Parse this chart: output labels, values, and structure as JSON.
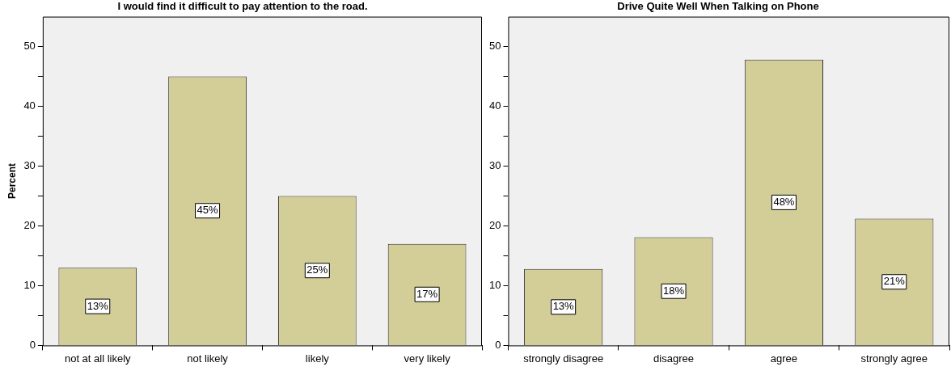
{
  "chart_data": [
    {
      "type": "bar",
      "title": "I would find it difficult to pay attention to the road.",
      "ylabel": "Percent",
      "categories": [
        "not at all likely",
        "not likely",
        "likely",
        "very likely"
      ],
      "values": [
        13,
        45,
        25,
        17
      ],
      "value_labels": [
        "13%",
        "45%",
        "25%",
        "17%"
      ],
      "color": "#d3ce97",
      "ylim": [
        0,
        55
      ],
      "yticks": [
        0,
        {
          "value": 5,
          "label": null
        },
        10,
        {
          "value": 15,
          "label": null
        },
        20,
        {
          "value": 25,
          "label": null
        },
        30,
        {
          "value": 35,
          "label": null
        },
        40,
        {
          "value": 45,
          "label": null
        },
        50
      ],
      "grid": false,
      "legend": false
    },
    {
      "type": "bar",
      "title": "Drive Quite Well When Talking on Phone",
      "categories": [
        "strongly disagree",
        "disagree",
        "agree",
        "strongly agree"
      ],
      "values": [
        12.8,
        18.1,
        47.8,
        21.2
      ],
      "value_labels": [
        "13%",
        "18%",
        "48%",
        "21%"
      ],
      "color": "#d3ce97",
      "ylim": [
        0,
        55
      ],
      "yticks": [
        0,
        {
          "value": 5,
          "label": null
        },
        10,
        {
          "value": 15,
          "label": null
        },
        20,
        {
          "value": 25,
          "label": null
        },
        30,
        {
          "value": 35,
          "label": null
        },
        40,
        {
          "value": 45,
          "label": null
        },
        50
      ],
      "grid": false,
      "legend": false
    }
  ]
}
